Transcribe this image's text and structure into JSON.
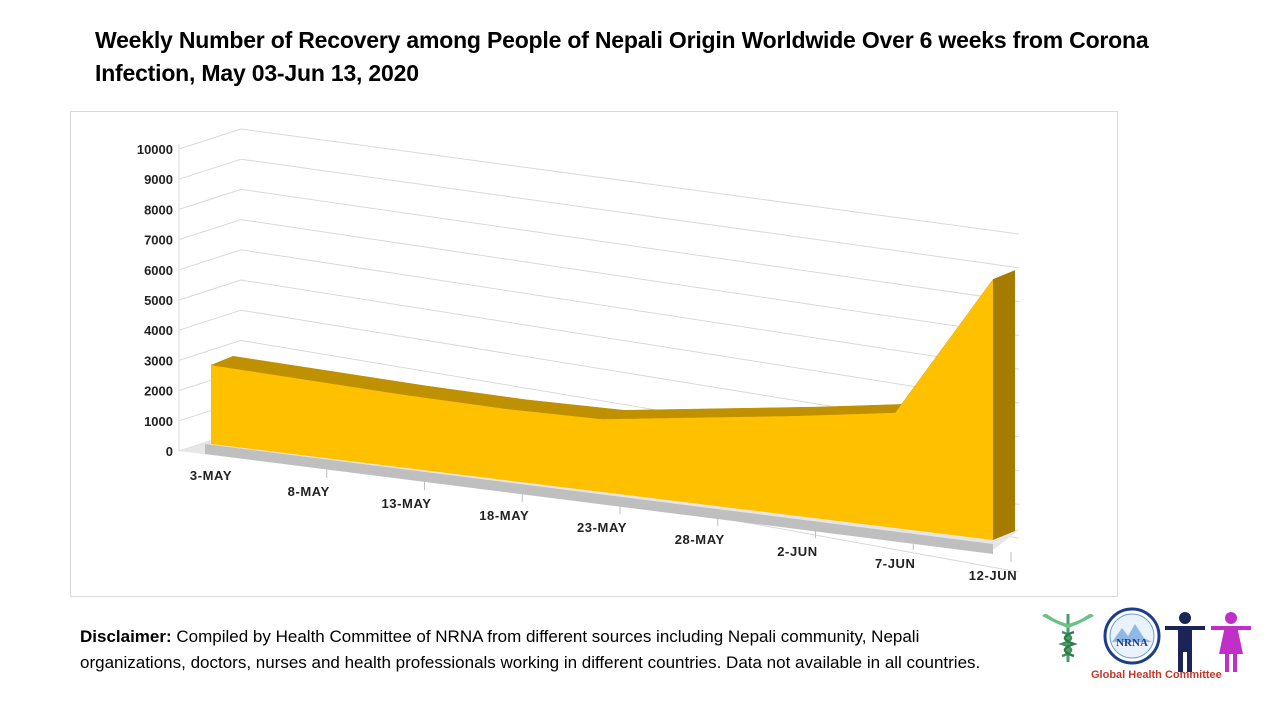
{
  "chart_data": {
    "type": "area",
    "title": "Weekly Number of Recovery among People of Nepali Origin Worldwide Over 6 weeks from Corona Infection, May 03-Jun 13, 2020",
    "categories": [
      "3-MAY",
      "8-MAY",
      "13-MAY",
      "18-MAY",
      "23-MAY",
      "28-MAY",
      "2-JUN",
      "7-JUN",
      "12-JUN"
    ],
    "series": [
      {
        "name": "Recovery",
        "values": [
          2600,
          2500,
          2400,
          2350,
          2400,
          2850,
          3300,
          3800,
          8600
        ]
      }
    ],
    "yticks": [
      "0",
      "1000",
      "2000",
      "3000",
      "4000",
      "5000",
      "6000",
      "7000",
      "8000",
      "9000",
      "10000"
    ],
    "ylim": [
      0,
      10000
    ],
    "grid": true,
    "style": "3d",
    "colors": {
      "area": "#FFC000",
      "top_edge": "#BF9000",
      "side": "#A67C00",
      "floor": "#BFBFBF",
      "grid": "#D9D9D9"
    }
  },
  "disclaimer": {
    "label": "Disclaimer:",
    "text": " Compiled by Health Committee of NRNA from different sources including Nepali community, Nepali organizations, doctors, nurses and health professionals  working in different countries. Data not available in all countries."
  },
  "logos": {
    "nrna_text": "NRNA",
    "caption": "Global Health Committee"
  }
}
